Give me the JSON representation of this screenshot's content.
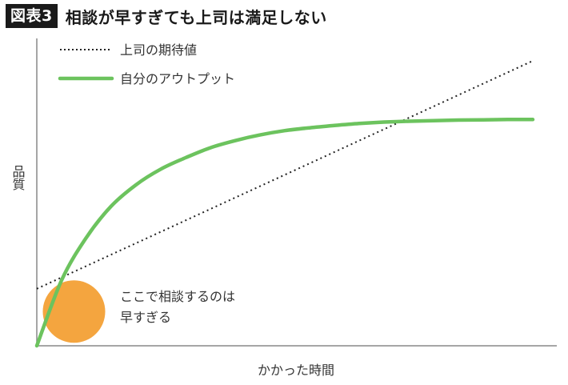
{
  "figure": {
    "badge": "図表3",
    "title": "相談が早すぎても上司は満足しない"
  },
  "chart_data": {
    "type": "line",
    "xlabel": "かかった時間",
    "ylabel": "品質",
    "grid": false,
    "legend_position": "top-left",
    "xlim": [
      0,
      100
    ],
    "ylim": [
      0,
      100
    ],
    "series": [
      {
        "name": "上司の期待値",
        "style": "dotted",
        "color": "#222222",
        "x": [
          0,
          100
        ],
        "y": [
          20,
          100
        ]
      },
      {
        "name": "自分のアウトプット",
        "style": "solid",
        "color": "#6cc35e",
        "x": [
          0,
          5,
          10,
          15,
          20,
          25,
          30,
          35,
          40,
          45,
          50,
          55,
          60,
          65,
          70,
          75,
          80,
          85,
          90,
          95,
          100
        ],
        "y": [
          0,
          23,
          38,
          49,
          56.5,
          62,
          66,
          69.5,
          72,
          74,
          75.5,
          76.5,
          77.3,
          78,
          78.5,
          78.8,
          79,
          79.2,
          79.3,
          79.4,
          79.4
        ]
      }
    ],
    "annotations": [
      {
        "shape": "circle",
        "color": "#f4a53f",
        "x": 7.5,
        "y": 12,
        "lines": [
          "ここで相談するのは",
          "早すぎる"
        ]
      }
    ]
  }
}
